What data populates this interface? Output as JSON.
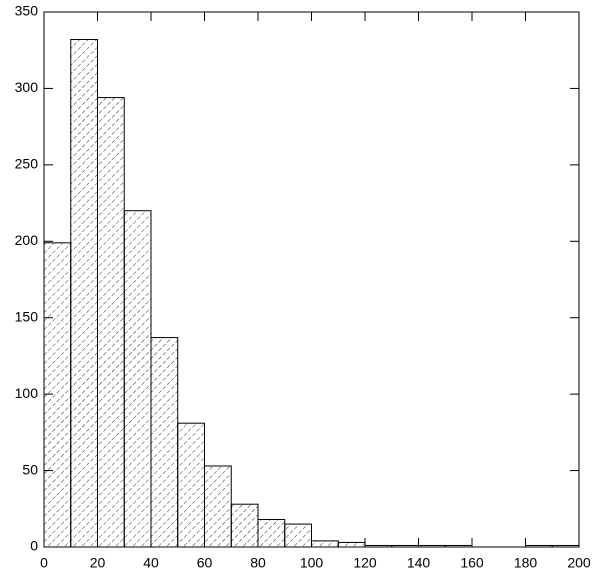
{
  "chart_data": {
    "type": "histogram",
    "bins": [
      0,
      10,
      20,
      30,
      40,
      50,
      60,
      70,
      80,
      90,
      100,
      110,
      120,
      130,
      140,
      150,
      160,
      170,
      180,
      190,
      200
    ],
    "counts": [
      199,
      332,
      294,
      220,
      137,
      81,
      53,
      28,
      18,
      15,
      4,
      3,
      1,
      1,
      1,
      1,
      0,
      0,
      1,
      1
    ],
    "color": "#000000",
    "hatch": true,
    "xlim": [
      0,
      200
    ],
    "xticks": [
      0,
      20,
      40,
      60,
      80,
      100,
      120,
      140,
      160,
      180,
      200
    ],
    "ylim": [
      0,
      350
    ],
    "yticks": [
      0,
      50,
      100,
      150,
      200,
      250,
      300,
      350
    ]
  }
}
